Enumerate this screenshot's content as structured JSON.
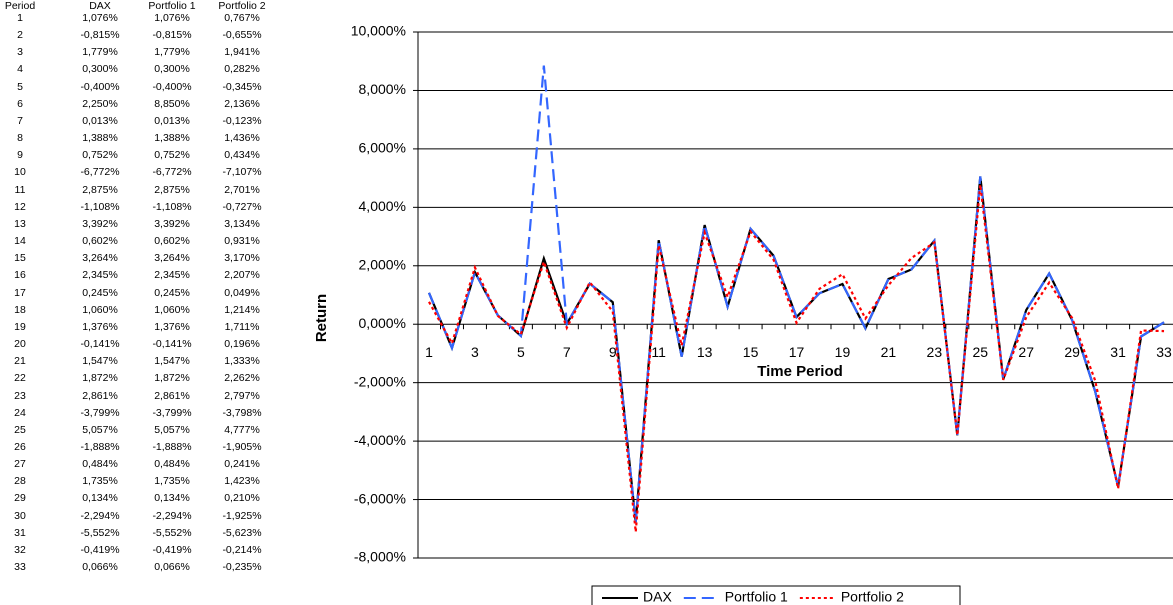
{
  "table": {
    "headers": [
      "Period",
      "DAX",
      "Portfolio 1",
      "Portfolio 2"
    ],
    "rows": [
      [
        "1",
        "1,076%",
        "1,076%",
        "0,767%"
      ],
      [
        "2",
        "-0,815%",
        "-0,815%",
        "-0,655%"
      ],
      [
        "3",
        "1,779%",
        "1,779%",
        "1,941%"
      ],
      [
        "4",
        "0,300%",
        "0,300%",
        "0,282%"
      ],
      [
        "5",
        "-0,400%",
        "-0,400%",
        "-0,345%"
      ],
      [
        "6",
        "2,250%",
        "8,850%",
        "2,136%"
      ],
      [
        "7",
        "0,013%",
        "0,013%",
        "-0,123%"
      ],
      [
        "8",
        "1,388%",
        "1,388%",
        "1,436%"
      ],
      [
        "9",
        "0,752%",
        "0,752%",
        "0,434%"
      ],
      [
        "10",
        "-6,772%",
        "-6,772%",
        "-7,107%"
      ],
      [
        "11",
        "2,875%",
        "2,875%",
        "2,701%"
      ],
      [
        "12",
        "-1,108%",
        "-1,108%",
        "-0,727%"
      ],
      [
        "13",
        "3,392%",
        "3,392%",
        "3,134%"
      ],
      [
        "14",
        "0,602%",
        "0,602%",
        "0,931%"
      ],
      [
        "15",
        "3,264%",
        "3,264%",
        "3,170%"
      ],
      [
        "16",
        "2,345%",
        "2,345%",
        "2,207%"
      ],
      [
        "17",
        "0,245%",
        "0,245%",
        "0,049%"
      ],
      [
        "18",
        "1,060%",
        "1,060%",
        "1,214%"
      ],
      [
        "19",
        "1,376%",
        "1,376%",
        "1,711%"
      ],
      [
        "20",
        "-0,141%",
        "-0,141%",
        "0,196%"
      ],
      [
        "21",
        "1,547%",
        "1,547%",
        "1,333%"
      ],
      [
        "22",
        "1,872%",
        "1,872%",
        "2,262%"
      ],
      [
        "23",
        "2,861%",
        "2,861%",
        "2,797%"
      ],
      [
        "24",
        "-3,799%",
        "-3,799%",
        "-3,798%"
      ],
      [
        "25",
        "5,057%",
        "5,057%",
        "4,777%"
      ],
      [
        "26",
        "-1,888%",
        "-1,888%",
        "-1,905%"
      ],
      [
        "27",
        "0,484%",
        "0,484%",
        "0,241%"
      ],
      [
        "28",
        "1,735%",
        "1,735%",
        "1,423%"
      ],
      [
        "29",
        "0,134%",
        "0,134%",
        "0,210%"
      ],
      [
        "30",
        "-2,294%",
        "-2,294%",
        "-1,925%"
      ],
      [
        "31",
        "-5,552%",
        "-5,552%",
        "-5,623%"
      ],
      [
        "32",
        "-0,419%",
        "-0,419%",
        "-0,214%"
      ],
      [
        "33",
        "0,066%",
        "0,066%",
        "-0,235%"
      ]
    ]
  },
  "chart_data": {
    "type": "line",
    "y_label": "Return",
    "x_label": "Time Period",
    "categories": [
      "1",
      null,
      "3",
      null,
      "5",
      null,
      "7",
      null,
      "9",
      null,
      "11",
      null,
      "13",
      null,
      "15",
      null,
      "17",
      null,
      "19",
      null,
      "21",
      null,
      "23",
      null,
      "25",
      null,
      "27",
      null,
      "29",
      null,
      "31",
      null,
      "33"
    ],
    "series": [
      {
        "name": "DAX",
        "color": "#000000",
        "dash": "solid",
        "values": [
          1.076,
          -0.815,
          1.779,
          0.3,
          -0.4,
          2.25,
          0.013,
          1.388,
          0.752,
          -6.772,
          2.875,
          -1.108,
          3.392,
          0.602,
          3.264,
          2.345,
          0.245,
          1.06,
          1.376,
          -0.141,
          1.547,
          1.872,
          2.861,
          -3.799,
          5.057,
          -1.888,
          0.484,
          1.735,
          0.134,
          -2.294,
          -5.552,
          -0.419,
          0.066
        ]
      },
      {
        "name": "Portfolio 1",
        "color": "#3366ff",
        "dash": "dashed",
        "values": [
          1.076,
          -0.815,
          1.779,
          0.3,
          -0.4,
          8.85,
          0.013,
          1.388,
          0.752,
          -6.772,
          2.875,
          -1.108,
          3.392,
          0.602,
          3.264,
          2.345,
          0.245,
          1.06,
          1.376,
          -0.141,
          1.547,
          1.872,
          2.861,
          -3.799,
          5.057,
          -1.888,
          0.484,
          1.735,
          0.134,
          -2.294,
          -5.552,
          -0.419,
          0.066
        ]
      },
      {
        "name": "Portfolio 2",
        "color": "#ff0000",
        "dash": "dotted",
        "values": [
          0.767,
          -0.655,
          1.941,
          0.282,
          -0.345,
          2.136,
          -0.123,
          1.436,
          0.434,
          -7.107,
          2.701,
          -0.727,
          3.134,
          0.931,
          3.17,
          2.207,
          0.049,
          1.214,
          1.711,
          0.196,
          1.333,
          2.262,
          2.797,
          -3.798,
          4.777,
          -1.905,
          0.241,
          1.423,
          0.21,
          -1.925,
          -5.623,
          -0.214,
          -0.235
        ]
      }
    ],
    "ylim": [
      -8,
      10
    ],
    "yticks": [
      {
        "value": -8,
        "label": "-8,000%"
      },
      {
        "value": -6,
        "label": "-6,000%"
      },
      {
        "value": -4,
        "label": "-4,000%"
      },
      {
        "value": -2,
        "label": "-2,000%"
      },
      {
        "value": 0,
        "label": "0,000%"
      },
      {
        "value": 2,
        "label": "2,000%"
      },
      {
        "value": 4,
        "label": "4,000%"
      },
      {
        "value": 6,
        "label": "6,000%"
      },
      {
        "value": 8,
        "label": "8,000%"
      },
      {
        "value": 10,
        "label": "10,000%"
      }
    ],
    "grid": true,
    "legend": "bottom"
  }
}
